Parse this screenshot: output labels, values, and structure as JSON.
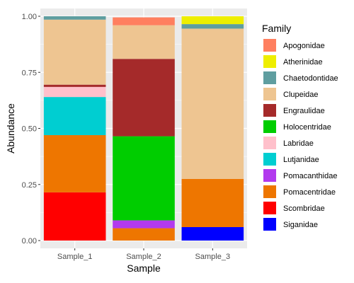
{
  "chart_data": {
    "type": "bar",
    "stacked": true,
    "xlabel": "Sample",
    "ylabel": "Abundance",
    "ylim": [
      0,
      1
    ],
    "y_ticks": [
      "0.00",
      "0.25",
      "0.50",
      "0.75",
      "1.00"
    ],
    "categories": [
      "Sample_1",
      "Sample_2",
      "Sample_3"
    ],
    "legend_title": "Family",
    "legend_position": "right",
    "grid": true,
    "panel_background": "#ebebeb",
    "series": [
      {
        "name": "Apogonidae",
        "color": "#ff7f5f",
        "values": [
          0,
          0.035,
          0
        ]
      },
      {
        "name": "Atherinidae",
        "color": "#eeee00",
        "values": [
          0,
          0,
          0.035
        ]
      },
      {
        "name": "Chaetodontidae",
        "color": "#5f9ea0",
        "values": [
          0.015,
          0,
          0.02
        ]
      },
      {
        "name": "Clupeidae",
        "color": "#eec591",
        "values": [
          0.29,
          0.15,
          0.67
        ]
      },
      {
        "name": "Engraulidae",
        "color": "#a52a2a",
        "values": [
          0.01,
          0.345,
          0
        ]
      },
      {
        "name": "Holocentridae",
        "color": "#00cd00",
        "values": [
          0,
          0.375,
          0
        ]
      },
      {
        "name": "Labridae",
        "color": "#ffc0cb",
        "values": [
          0.045,
          0,
          0
        ]
      },
      {
        "name": "Lutjanidae",
        "color": "#00ced1",
        "values": [
          0.17,
          0,
          0
        ]
      },
      {
        "name": "Pomacanthidae",
        "color": "#b23aee",
        "values": [
          0,
          0.035,
          0
        ]
      },
      {
        "name": "Pomacentridae",
        "color": "#ee7600",
        "values": [
          0.255,
          0.055,
          0.215
        ]
      },
      {
        "name": "Scombridae",
        "color": "#ff0000",
        "values": [
          0.215,
          0,
          0
        ]
      },
      {
        "name": "Siganidae",
        "color": "#0000ff",
        "values": [
          0,
          0,
          0.06
        ]
      }
    ]
  }
}
